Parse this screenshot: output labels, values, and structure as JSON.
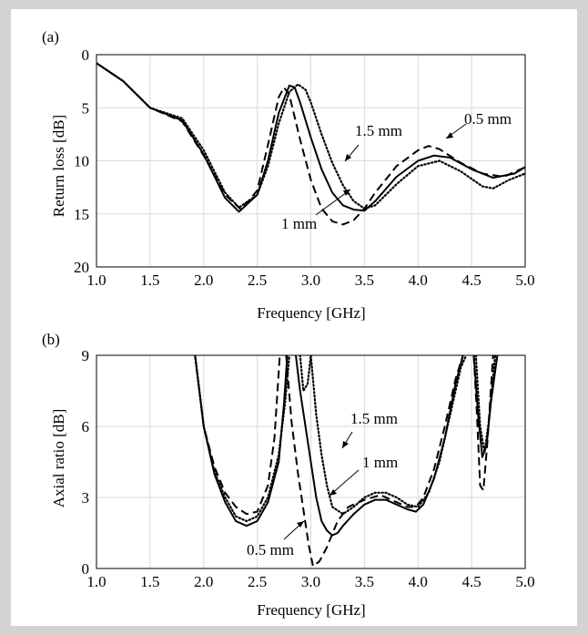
{
  "chart_data": [
    {
      "type": "line",
      "panel_label": "(a)",
      "xlabel": "Frequency [GHz]",
      "ylabel": "Return loss [dB]",
      "xlim": [
        1.0,
        5.0
      ],
      "ylim": [
        0,
        20
      ],
      "y_reversed": true,
      "grid": true,
      "xticks": [
        "1.0",
        "1.5",
        "2.0",
        "2.5",
        "3.0",
        "3.5",
        "4.0",
        "4.5",
        "5.0"
      ],
      "yticks": [
        "0",
        "5",
        "10",
        "15",
        "20"
      ],
      "series": [
        {
          "name": "0.5 mm",
          "style": "dashed",
          "x": [
            1.0,
            1.25,
            1.5,
            1.8,
            2.0,
            2.2,
            2.35,
            2.5,
            2.6,
            2.7,
            2.75,
            2.8,
            2.9,
            3.0,
            3.1,
            3.2,
            3.3,
            3.4,
            3.5,
            3.6,
            3.8,
            4.0,
            4.1,
            4.2,
            4.4,
            4.6,
            4.8,
            5.0
          ],
          "y": [
            0.8,
            2.5,
            5.0,
            6.3,
            9.5,
            13.2,
            14.6,
            12.8,
            8.5,
            4.0,
            3.1,
            3.8,
            8.0,
            11.8,
            14.5,
            15.7,
            16.0,
            15.6,
            14.5,
            13.0,
            10.5,
            9.0,
            8.6,
            8.9,
            10.2,
            11.2,
            11.5,
            10.6
          ]
        },
        {
          "name": "1 mm",
          "style": "solid",
          "x": [
            1.0,
            1.25,
            1.5,
            1.8,
            2.0,
            2.2,
            2.33,
            2.5,
            2.6,
            2.7,
            2.8,
            2.85,
            2.9,
            3.0,
            3.1,
            3.2,
            3.3,
            3.4,
            3.5,
            3.6,
            3.8,
            4.0,
            4.15,
            4.3,
            4.5,
            4.7,
            4.9,
            5.0
          ],
          "y": [
            0.8,
            2.5,
            5.0,
            6.2,
            9.4,
            13.5,
            14.8,
            13.2,
            10.0,
            5.5,
            2.9,
            3.1,
            4.5,
            7.8,
            10.8,
            13.0,
            14.2,
            14.6,
            14.7,
            13.8,
            11.5,
            10.0,
            9.5,
            9.7,
            10.8,
            11.6,
            11.2,
            10.6
          ]
        },
        {
          "name": "1.5 mm",
          "style": "dotted",
          "x": [
            1.0,
            1.25,
            1.5,
            1.8,
            2.0,
            2.2,
            2.33,
            2.5,
            2.6,
            2.7,
            2.8,
            2.88,
            2.95,
            3.0,
            3.1,
            3.2,
            3.3,
            3.4,
            3.5,
            3.6,
            3.8,
            4.0,
            4.2,
            4.4,
            4.6,
            4.7,
            4.85,
            5.0
          ],
          "y": [
            0.8,
            2.5,
            5.0,
            6.0,
            9.0,
            13.0,
            14.4,
            13.2,
            10.5,
            6.5,
            3.5,
            2.8,
            3.3,
            4.5,
            7.5,
            10.2,
            12.3,
            13.8,
            14.5,
            14.2,
            12.2,
            10.5,
            10.0,
            11.0,
            12.4,
            12.6,
            11.8,
            11.2
          ]
        }
      ],
      "annotations": [
        "1.5 mm",
        "0.5 mm",
        "1 mm"
      ]
    },
    {
      "type": "line",
      "panel_label": "(b)",
      "xlabel": "Frequency [GHz]",
      "ylabel": "Axial ratio [dB]",
      "xlim": [
        1.0,
        5.0
      ],
      "ylim": [
        0,
        9
      ],
      "grid": true,
      "xticks": [
        "1.0",
        "1.5",
        "2.0",
        "2.5",
        "3.0",
        "3.5",
        "4.0",
        "4.5",
        "5.0"
      ],
      "yticks": [
        "0",
        "3",
        "6",
        "9"
      ],
      "series": [
        {
          "name": "0.5 mm",
          "style": "dashed",
          "segments": [
            {
              "x": [
                1.92,
                2.0,
                2.1,
                2.2,
                2.3,
                2.4,
                2.5,
                2.6,
                2.66,
                2.71
              ],
              "y": [
                9.0,
                6.0,
                4.3,
                3.2,
                2.6,
                2.3,
                2.4,
                3.5,
                5.5,
                9.0
              ]
            },
            {
              "x": [
                2.77,
                2.82,
                2.88,
                2.93,
                2.98,
                3.02,
                3.08,
                3.15,
                3.25,
                3.35,
                3.5,
                3.65,
                3.8,
                3.9,
                3.98,
                4.05,
                4.15,
                4.25,
                4.35,
                4.42
              ],
              "y": [
                9.0,
                6.2,
                4.0,
                2.5,
                1.0,
                0.1,
                0.3,
                0.9,
                2.0,
                2.6,
                2.9,
                3.1,
                2.8,
                2.6,
                2.6,
                3.0,
                4.2,
                6.0,
                8.0,
                9.0
              ]
            },
            {
              "x": [
                4.52,
                4.55,
                4.58,
                4.61,
                4.65,
                4.7
              ],
              "y": [
                9.0,
                6.5,
                3.5,
                3.3,
                5.5,
                9.0
              ]
            }
          ]
        },
        {
          "name": "1 mm",
          "style": "solid",
          "segments": [
            {
              "x": [
                1.92,
                2.0,
                2.1,
                2.2,
                2.3,
                2.4,
                2.5,
                2.6,
                2.7,
                2.75,
                2.78
              ],
              "y": [
                9.0,
                6.0,
                4.0,
                2.8,
                2.0,
                1.8,
                2.0,
                2.8,
                4.5,
                7.0,
                9.0
              ]
            },
            {
              "x": [
                2.86,
                2.9,
                2.95,
                3.0,
                3.05,
                3.1,
                3.15,
                3.2,
                3.25,
                3.3,
                3.4,
                3.5,
                3.6,
                3.7,
                3.8,
                3.9,
                3.98,
                4.05,
                4.15,
                4.25,
                4.35,
                4.42
              ],
              "y": [
                9.0,
                7.5,
                6.0,
                4.5,
                3.0,
                2.0,
                1.6,
                1.4,
                1.5,
                1.8,
                2.3,
                2.7,
                2.9,
                2.9,
                2.7,
                2.5,
                2.4,
                2.7,
                3.8,
                5.5,
                7.8,
                9.0
              ]
            },
            {
              "x": [
                4.52,
                4.56,
                4.6,
                4.64,
                4.68,
                4.74
              ],
              "y": [
                9.0,
                6.5,
                4.7,
                5.2,
                7.0,
                9.0
              ]
            }
          ]
        },
        {
          "name": "1.5 mm",
          "style": "dotted",
          "segments": [
            {
              "x": [
                1.92,
                2.0,
                2.1,
                2.2,
                2.3,
                2.4,
                2.5,
                2.6,
                2.7,
                2.76,
                2.8
              ],
              "y": [
                9.0,
                6.0,
                4.1,
                3.0,
                2.2,
                2.0,
                2.2,
                3.0,
                4.8,
                7.0,
                9.0
              ]
            },
            {
              "x": [
                2.9,
                2.93,
                2.97,
                3.0,
                3.05,
                3.1,
                3.15,
                3.2,
                3.3,
                3.4,
                3.5,
                3.6,
                3.7,
                3.8,
                3.9,
                4.0,
                4.1,
                4.2,
                4.3,
                4.4,
                4.45
              ],
              "y": [
                9.0,
                7.5,
                7.8,
                9.0,
                6.5,
                4.8,
                3.5,
                2.6,
                2.3,
                2.6,
                3.0,
                3.2,
                3.2,
                3.0,
                2.7,
                2.6,
                3.2,
                4.5,
                6.5,
                8.5,
                9.0
              ]
            },
            {
              "x": [
                4.54,
                4.58,
                4.62,
                4.66,
                4.72
              ],
              "y": [
                9.0,
                6.0,
                4.9,
                6.2,
                9.0
              ]
            }
          ]
        }
      ],
      "annotations": [
        "1.5 mm",
        "1 mm",
        "0.5 mm"
      ]
    }
  ]
}
